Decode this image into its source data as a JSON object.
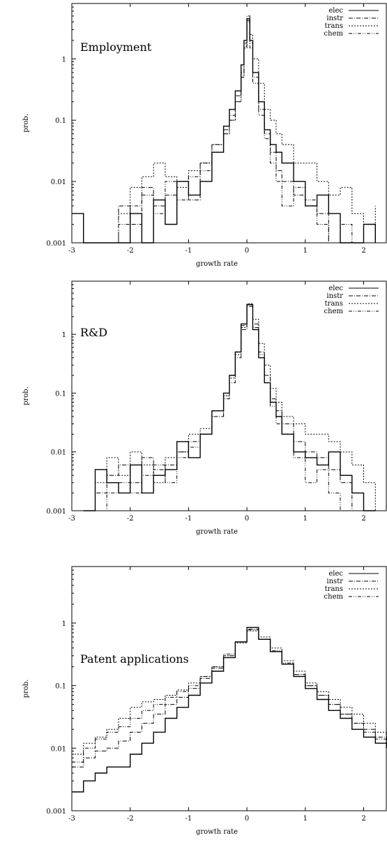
{
  "chart_data": [
    {
      "type": "line",
      "title": "Employment",
      "xlabel": "growth rate",
      "ylabel": "prob.",
      "xlim": [
        -3,
        2.4
      ],
      "ylim": [
        0.001,
        8
      ],
      "log_y": true,
      "xticks": [
        "-3",
        "-2",
        "-1",
        "0",
        "1",
        "2"
      ],
      "yticks": [
        "1",
        "0.1",
        "0.01",
        "0.001"
      ],
      "legend": "top-right",
      "series": [
        {
          "name": "elec",
          "x": [
            -3.0,
            -2.8,
            -2.4,
            -2.2,
            -2.0,
            -1.8,
            -1.6,
            -1.4,
            -1.2,
            -1.0,
            -0.8,
            -0.6,
            -0.4,
            -0.3,
            -0.2,
            -0.1,
            -0.05,
            0.0,
            0.05,
            0.1,
            0.2,
            0.3,
            0.4,
            0.5,
            0.6,
            0.8,
            1.0,
            1.2,
            1.4,
            1.6,
            1.8,
            2.0,
            2.2
          ],
          "y": [
            0.003,
            0.001,
            0.001,
            0.001,
            0.003,
            0.001,
            0.005,
            0.002,
            0.01,
            0.006,
            0.01,
            0.03,
            0.08,
            0.15,
            0.3,
            0.8,
            2.0,
            4.5,
            2.0,
            0.6,
            0.2,
            0.07,
            0.04,
            0.03,
            0.02,
            0.01,
            0.004,
            0.006,
            0.003,
            0.001,
            0.001,
            0.002,
            0.001
          ]
        },
        {
          "name": "instr",
          "x": [
            -3.0,
            -2.6,
            -2.2,
            -2.0,
            -1.8,
            -1.6,
            -1.4,
            -1.2,
            -1.0,
            -0.8,
            -0.6,
            -0.4,
            -0.3,
            -0.2,
            -0.1,
            -0.05,
            0.0,
            0.05,
            0.1,
            0.2,
            0.3,
            0.4,
            0.5,
            0.6,
            0.8,
            1.0,
            1.2,
            1.4,
            1.6,
            1.8,
            2.0,
            2.2
          ],
          "y": [
            0.001,
            0.001,
            0.004,
            0.002,
            0.008,
            0.004,
            0.006,
            0.01,
            0.005,
            0.02,
            0.04,
            0.07,
            0.12,
            0.25,
            0.6,
            1.8,
            5.0,
            1.8,
            0.5,
            0.15,
            0.06,
            0.03,
            0.015,
            0.01,
            0.006,
            0.004,
            0.003,
            0.001,
            0.001,
            0.001,
            0.002,
            0.001
          ]
        },
        {
          "name": "trans",
          "x": [
            -3.0,
            -2.6,
            -2.2,
            -2.0,
            -1.8,
            -1.6,
            -1.4,
            -1.2,
            -1.0,
            -0.8,
            -0.6,
            -0.4,
            -0.3,
            -0.2,
            -0.1,
            -0.05,
            0.0,
            0.05,
            0.1,
            0.2,
            0.3,
            0.4,
            0.5,
            0.6,
            0.8,
            1.0,
            1.2,
            1.4,
            1.6,
            1.8,
            2.0,
            2.2
          ],
          "y": [
            0.001,
            0.001,
            0.003,
            0.008,
            0.012,
            0.02,
            0.012,
            0.008,
            0.015,
            0.02,
            0.04,
            0.06,
            0.1,
            0.2,
            0.5,
            1.5,
            4.0,
            2.5,
            1.0,
            0.4,
            0.15,
            0.1,
            0.06,
            0.04,
            0.02,
            0.02,
            0.01,
            0.006,
            0.008,
            0.003,
            0.001,
            0.004
          ]
        },
        {
          "name": "chem",
          "x": [
            -3.0,
            -2.6,
            -2.2,
            -2.0,
            -1.8,
            -1.6,
            -1.4,
            -1.2,
            -1.0,
            -0.8,
            -0.6,
            -0.4,
            -0.3,
            -0.2,
            -0.1,
            -0.05,
            0.0,
            0.05,
            0.1,
            0.2,
            0.3,
            0.4,
            0.5,
            0.6,
            0.8,
            1.0,
            1.2,
            1.4,
            1.6,
            1.8,
            2.0,
            2.2
          ],
          "y": [
            0.001,
            0.001,
            0.002,
            0.004,
            0.006,
            0.003,
            0.01,
            0.005,
            0.012,
            0.015,
            0.03,
            0.06,
            0.1,
            0.2,
            0.5,
            1.6,
            4.2,
            1.5,
            0.4,
            0.12,
            0.05,
            0.02,
            0.01,
            0.004,
            0.008,
            0.005,
            0.002,
            0.001,
            0.002,
            0.001,
            0.001,
            0.001
          ]
        }
      ]
    },
    {
      "type": "line",
      "title": "R&D",
      "xlabel": "growth rate",
      "ylabel": "prob.",
      "xlim": [
        -3,
        2.4
      ],
      "ylim": [
        0.001,
        8
      ],
      "log_y": true,
      "xticks": [
        "-3",
        "-2",
        "-1",
        "0",
        "1",
        "2"
      ],
      "yticks": [
        "1",
        "0.1",
        "0.01",
        "0.001"
      ],
      "legend": "top-right",
      "series": [
        {
          "name": "elec",
          "x": [
            -2.8,
            -2.6,
            -2.4,
            -2.2,
            -2.0,
            -1.8,
            -1.6,
            -1.4,
            -1.2,
            -1.0,
            -0.8,
            -0.6,
            -0.4,
            -0.3,
            -0.2,
            -0.1,
            0.0,
            0.1,
            0.2,
            0.3,
            0.4,
            0.5,
            0.6,
            0.8,
            1.0,
            1.2,
            1.4,
            1.6,
            1.8,
            2.0,
            2.2
          ],
          "y": [
            0.001,
            0.005,
            0.003,
            0.002,
            0.006,
            0.002,
            0.004,
            0.005,
            0.015,
            0.008,
            0.02,
            0.05,
            0.1,
            0.2,
            0.5,
            1.5,
            3.2,
            1.2,
            0.4,
            0.15,
            0.07,
            0.04,
            0.02,
            0.01,
            0.008,
            0.006,
            0.01,
            0.004,
            0.002,
            0.001,
            0.001
          ]
        },
        {
          "name": "instr",
          "x": [
            -2.8,
            -2.6,
            -2.4,
            -2.2,
            -2.0,
            -1.8,
            -1.6,
            -1.4,
            -1.2,
            -1.0,
            -0.8,
            -0.6,
            -0.4,
            -0.3,
            -0.2,
            -0.1,
            0.0,
            0.1,
            0.2,
            0.3,
            0.4,
            0.5,
            0.6,
            0.8,
            1.0,
            1.2,
            1.4,
            1.6,
            1.8,
            2.0,
            2.2
          ],
          "y": [
            0.001,
            0.002,
            0.004,
            0.006,
            0.003,
            0.008,
            0.005,
            0.006,
            0.01,
            0.015,
            0.02,
            0.04,
            0.08,
            0.15,
            0.4,
            1.2,
            3.0,
            1.5,
            0.5,
            0.2,
            0.08,
            0.05,
            0.03,
            0.015,
            0.01,
            0.008,
            0.005,
            0.003,
            0.001,
            0.001,
            0.001
          ]
        },
        {
          "name": "trans",
          "x": [
            -2.8,
            -2.6,
            -2.4,
            -2.2,
            -2.0,
            -1.8,
            -1.6,
            -1.4,
            -1.2,
            -1.0,
            -0.8,
            -0.6,
            -0.4,
            -0.3,
            -0.2,
            -0.1,
            0.0,
            0.1,
            0.2,
            0.3,
            0.4,
            0.5,
            0.6,
            0.8,
            1.0,
            1.2,
            1.4,
            1.6,
            1.8,
            2.0,
            2.2
          ],
          "y": [
            0.001,
            0.003,
            0.008,
            0.004,
            0.01,
            0.006,
            0.003,
            0.008,
            0.01,
            0.02,
            0.025,
            0.05,
            0.09,
            0.18,
            0.45,
            1.3,
            3.3,
            1.8,
            0.7,
            0.3,
            0.12,
            0.07,
            0.04,
            0.03,
            0.02,
            0.02,
            0.015,
            0.01,
            0.006,
            0.003,
            0.001
          ]
        },
        {
          "name": "chem",
          "x": [
            -2.8,
            -2.6,
            -2.4,
            -2.2,
            -2.0,
            -1.8,
            -1.6,
            -1.4,
            -1.2,
            -1.0,
            -0.8,
            -0.6,
            -0.4,
            -0.3,
            -0.2,
            -0.1,
            0.0,
            0.1,
            0.2,
            0.3,
            0.4,
            0.5,
            0.6,
            0.8,
            1.0,
            1.2,
            1.4,
            1.6,
            1.8,
            2.0,
            2.2
          ],
          "y": [
            0.001,
            0.001,
            0.002,
            0.003,
            0.002,
            0.004,
            0.006,
            0.003,
            0.008,
            0.012,
            0.02,
            0.04,
            0.09,
            0.2,
            0.5,
            1.4,
            3.0,
            1.3,
            0.45,
            0.15,
            0.06,
            0.03,
            0.02,
            0.008,
            0.003,
            0.005,
            0.002,
            0.001,
            0.001,
            0.001,
            0.001
          ]
        }
      ]
    },
    {
      "type": "line",
      "title": "Patent applications",
      "xlabel": "growth rate",
      "ylabel": "prob.",
      "xlim": [
        -3,
        2.4
      ],
      "ylim": [
        0.001,
        8
      ],
      "log_y": true,
      "xticks": [
        "-3",
        "-2",
        "-1",
        "0",
        "1",
        "2"
      ],
      "yticks": [
        "1",
        "0.1",
        "0.01",
        "0.001"
      ],
      "legend": "top-right",
      "series": [
        {
          "name": "elec",
          "x": [
            -3.0,
            -2.8,
            -2.6,
            -2.4,
            -2.2,
            -2.0,
            -1.8,
            -1.6,
            -1.4,
            -1.2,
            -1.0,
            -0.8,
            -0.6,
            -0.4,
            -0.2,
            0.0,
            0.2,
            0.4,
            0.6,
            0.8,
            1.0,
            1.2,
            1.4,
            1.6,
            1.8,
            2.0,
            2.2,
            2.4
          ],
          "y": [
            0.002,
            0.003,
            0.004,
            0.005,
            0.005,
            0.008,
            0.012,
            0.018,
            0.03,
            0.045,
            0.07,
            0.11,
            0.17,
            0.28,
            0.5,
            0.85,
            0.55,
            0.35,
            0.22,
            0.14,
            0.09,
            0.06,
            0.04,
            0.03,
            0.02,
            0.015,
            0.012,
            0.01
          ]
        },
        {
          "name": "instr",
          "x": [
            -3.0,
            -2.8,
            -2.6,
            -2.4,
            -2.2,
            -2.0,
            -1.8,
            -1.6,
            -1.4,
            -1.2,
            -1.0,
            -0.8,
            -0.6,
            -0.4,
            -0.2,
            0.0,
            0.2,
            0.4,
            0.6,
            0.8,
            1.0,
            1.2,
            1.4,
            1.6,
            1.8,
            2.0,
            2.2,
            2.4
          ],
          "y": [
            0.005,
            0.007,
            0.009,
            0.01,
            0.013,
            0.018,
            0.025,
            0.035,
            0.05,
            0.065,
            0.09,
            0.13,
            0.19,
            0.3,
            0.5,
            0.8,
            0.55,
            0.35,
            0.22,
            0.15,
            0.1,
            0.07,
            0.05,
            0.035,
            0.025,
            0.02,
            0.015,
            0.01
          ]
        },
        {
          "name": "trans",
          "x": [
            -3.0,
            -2.8,
            -2.6,
            -2.4,
            -2.2,
            -2.0,
            -1.8,
            -1.6,
            -1.4,
            -1.2,
            -1.0,
            -0.8,
            -0.6,
            -0.4,
            -0.2,
            0.0,
            0.2,
            0.4,
            0.6,
            0.8,
            1.0,
            1.2,
            1.4,
            1.6,
            1.8,
            2.0,
            2.2,
            2.4
          ],
          "y": [
            0.008,
            0.012,
            0.015,
            0.02,
            0.03,
            0.045,
            0.055,
            0.06,
            0.07,
            0.085,
            0.11,
            0.14,
            0.2,
            0.3,
            0.48,
            0.75,
            0.6,
            0.4,
            0.25,
            0.17,
            0.11,
            0.08,
            0.06,
            0.045,
            0.035,
            0.025,
            0.018,
            0.012
          ]
        },
        {
          "name": "chem",
          "x": [
            -3.0,
            -2.8,
            -2.6,
            -2.4,
            -2.2,
            -2.0,
            -1.8,
            -1.6,
            -1.4,
            -1.2,
            -1.0,
            -0.8,
            -0.6,
            -0.4,
            -0.2,
            0.0,
            0.2,
            0.4,
            0.6,
            0.8,
            1.0,
            1.2,
            1.4,
            1.6,
            1.8,
            2.0,
            2.2,
            2.4
          ],
          "y": [
            0.006,
            0.01,
            0.014,
            0.018,
            0.022,
            0.03,
            0.04,
            0.05,
            0.065,
            0.08,
            0.1,
            0.14,
            0.2,
            0.32,
            0.5,
            0.78,
            0.55,
            0.36,
            0.23,
            0.15,
            0.1,
            0.07,
            0.05,
            0.035,
            0.025,
            0.018,
            0.014,
            0.01
          ]
        }
      ]
    }
  ],
  "styles": {
    "elec": "solid",
    "instr": "dash-dot",
    "trans": "dotted",
    "chem": "dash-dot-dot"
  }
}
